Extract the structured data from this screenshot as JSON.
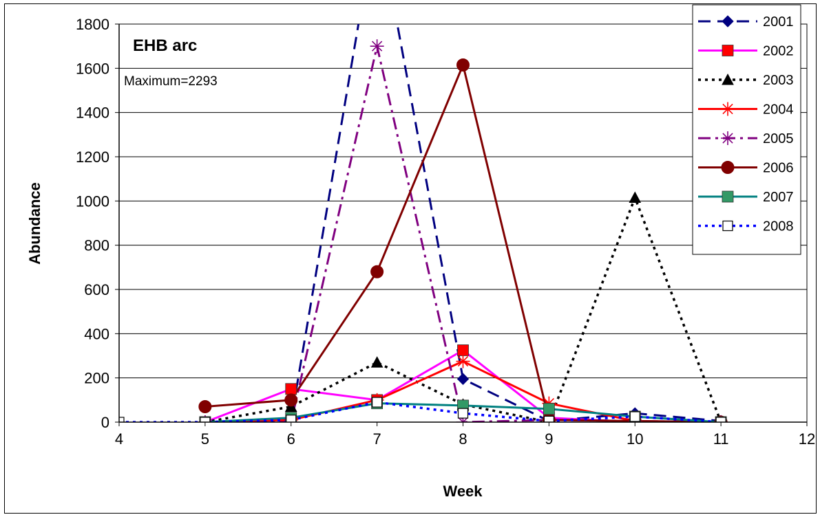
{
  "chart_data": {
    "type": "line",
    "title": "",
    "annotations": [
      "EHB arc",
      "Maximum=2293"
    ],
    "xlabel": "Week",
    "ylabel": "Abundance",
    "xlim": [
      4,
      12
    ],
    "ylim": [
      0,
      1800
    ],
    "xticks": [
      4,
      5,
      6,
      7,
      8,
      9,
      10,
      11,
      12
    ],
    "yticks": [
      0,
      200,
      400,
      600,
      800,
      1000,
      1200,
      1400,
      1600,
      1800
    ],
    "grid": "horizontal",
    "legend_position": "right",
    "series": [
      {
        "name": "2001",
        "color": "#000080",
        "dash": "long-dash",
        "marker": "diamond",
        "x": [
          5,
          6,
          7,
          8,
          9,
          10,
          11
        ],
        "y": [
          0,
          10,
          2293,
          195,
          5,
          40,
          5
        ]
      },
      {
        "name": "2002",
        "color": "#ff00ff",
        "dash": "solid",
        "marker": "square",
        "marker_color": "#ff0000",
        "x": [
          5,
          6,
          7,
          8,
          9,
          10,
          11
        ],
        "y": [
          0,
          150,
          100,
          325,
          20,
          0,
          0
        ]
      },
      {
        "name": "2003",
        "color": "#000000",
        "dash": "dot",
        "marker": "triangle",
        "x": [
          5,
          6,
          7,
          8,
          9,
          10,
          11
        ],
        "y": [
          0,
          70,
          270,
          80,
          0,
          1015,
          0
        ]
      },
      {
        "name": "2004",
        "color": "#ff0000",
        "dash": "solid",
        "marker": "asterisk",
        "x": [
          5,
          6,
          7,
          8,
          9,
          10,
          11
        ],
        "y": [
          0,
          10,
          100,
          275,
          85,
          5,
          0
        ]
      },
      {
        "name": "2005",
        "color": "#800080",
        "dash": "dash-dot",
        "marker": "asterisk",
        "x": [
          5,
          6,
          7,
          8,
          9,
          10,
          11
        ],
        "y": [
          0,
          0,
          1700,
          0,
          10,
          5,
          0
        ]
      },
      {
        "name": "2006",
        "color": "#800000",
        "dash": "solid",
        "marker": "circle",
        "x": [
          5,
          6,
          7,
          8,
          9,
          10,
          11
        ],
        "y": [
          70,
          100,
          680,
          1615,
          10,
          5,
          0
        ]
      },
      {
        "name": "2007",
        "color": "#008080",
        "dash": "solid",
        "marker": "square",
        "marker_color": "#339966",
        "x": [
          5,
          6,
          7,
          8,
          9,
          10,
          11
        ],
        "y": [
          0,
          20,
          85,
          75,
          60,
          25,
          0
        ]
      },
      {
        "name": "2008",
        "color": "#0000ff",
        "dash": "dot",
        "marker": "open-square",
        "x": [
          4,
          5,
          6,
          7,
          8,
          9,
          10,
          11
        ],
        "y": [
          0,
          0,
          10,
          90,
          40,
          5,
          25,
          0
        ]
      }
    ]
  }
}
